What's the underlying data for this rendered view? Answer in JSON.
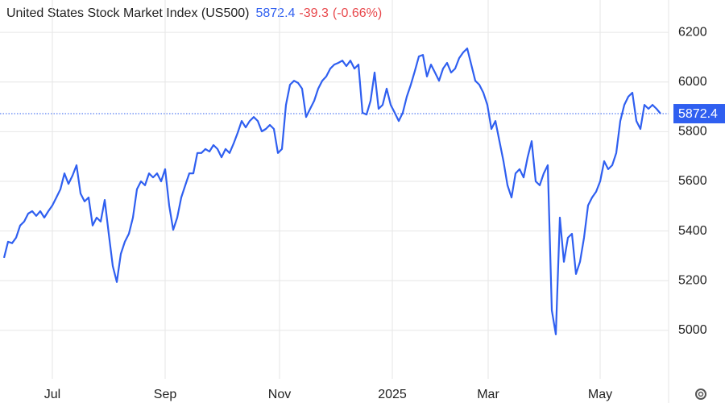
{
  "chart_data": {
    "type": "line",
    "title": "United States Stock Market Index (US500)",
    "last_price": 5872.4,
    "change": -39.3,
    "change_percent": "(-0.66%)",
    "color": "#2f5ff0",
    "values": [
      5292,
      5357,
      5351,
      5373,
      5422,
      5438,
      5470,
      5480,
      5461,
      5480,
      5454,
      5480,
      5503,
      5535,
      5568,
      5632,
      5590,
      5623,
      5665,
      5551,
      5519,
      5535,
      5422,
      5454,
      5438,
      5525,
      5389,
      5259,
      5195,
      5308,
      5357,
      5389,
      5454,
      5568,
      5600,
      5584,
      5632,
      5616,
      5632,
      5600,
      5649,
      5503,
      5405,
      5454,
      5535,
      5584,
      5632,
      5632,
      5714,
      5714,
      5730,
      5720,
      5746,
      5730,
      5697,
      5730,
      5714,
      5752,
      5795,
      5843,
      5817,
      5843,
      5859,
      5843,
      5801,
      5811,
      5827,
      5811,
      5714,
      5730,
      5908,
      5989,
      6005,
      5996,
      5973,
      5859,
      5892,
      5924,
      5973,
      6005,
      6022,
      6054,
      6070,
      6077,
      6086,
      6064,
      6086,
      6054,
      6070,
      5876,
      5869,
      5924,
      6038,
      5892,
      5908,
      5973,
      5908,
      5876,
      5843,
      5876,
      5941,
      5989,
      6044,
      6103,
      6109,
      6022,
      6070,
      6038,
      6005,
      6054,
      6077,
      6038,
      6054,
      6096,
      6119,
      6135,
      6070,
      6005,
      5989,
      5957,
      5908,
      5811,
      5843,
      5762,
      5681,
      5584,
      5535,
      5632,
      5649,
      5616,
      5697,
      5762,
      5600,
      5584,
      5632,
      5665,
      5081,
      4984,
      5454,
      5276,
      5373,
      5389,
      5227,
      5276,
      5373,
      5503,
      5535,
      5558,
      5600,
      5681,
      5649,
      5665,
      5714,
      5843,
      5908,
      5941,
      5957,
      5843,
      5811,
      5908,
      5892,
      5908,
      5892,
      5872.4
    ],
    "xlim": [
      -1,
      165
    ],
    "xticks": [
      {
        "value": 12,
        "label": "Jul"
      },
      {
        "value": 40,
        "label": "Sep"
      },
      {
        "value": 68.4,
        "label": "Nov"
      },
      {
        "value": 96.4,
        "label": "2025"
      },
      {
        "value": 120.2,
        "label": "Mar"
      },
      {
        "value": 148,
        "label": "May"
      }
    ],
    "ylim": [
      4805,
      6330
    ],
    "yticks": [
      5000,
      5200,
      5400,
      5600,
      5800,
      6000,
      6200
    ],
    "grid": true
  }
}
